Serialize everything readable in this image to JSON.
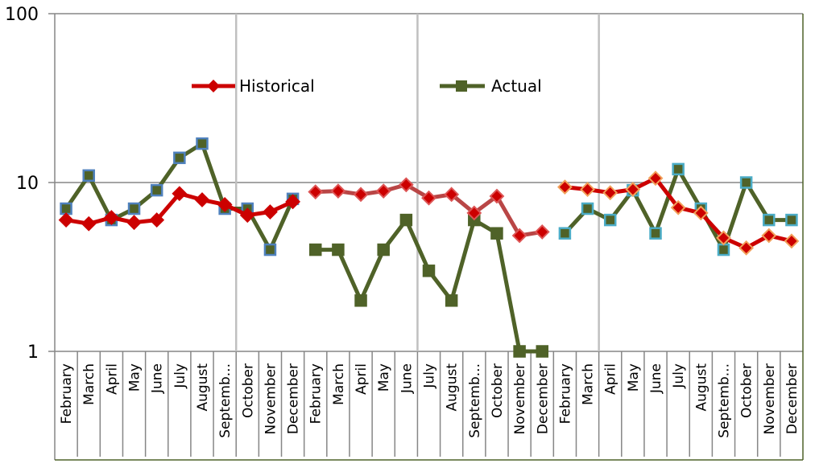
{
  "chart_data": {
    "type": "line",
    "title": "",
    "xlabel": "",
    "ylabel": "",
    "yscale": "log",
    "ylim": [
      1,
      100
    ],
    "yticks": [
      "1",
      "10",
      "100"
    ],
    "grid": true,
    "legend": {
      "placement": "top-center",
      "entries": [
        "Historical",
        "Actual"
      ]
    },
    "categories": [
      "February",
      "March",
      "April",
      "May",
      "June",
      "July",
      "August",
      "Septemb...",
      "October",
      "November",
      "December",
      "February",
      "March",
      "April",
      "May",
      "June",
      "July",
      "August",
      "Septemb...",
      "October",
      "November",
      "December",
      "February",
      "March",
      "April",
      "May",
      "June",
      "July",
      "August",
      "Septemb...",
      "October",
      "November",
      "December"
    ],
    "segment_breaks_after": [
      10,
      21
    ],
    "series": [
      {
        "name": "Historical",
        "color": "#cc0000",
        "values": [
          6.0,
          5.7,
          6.2,
          5.8,
          6.0,
          8.6,
          7.9,
          7.4,
          6.4,
          6.7,
          7.7,
          8.8,
          8.9,
          8.5,
          8.9,
          9.7,
          8.1,
          8.5,
          6.6,
          8.3,
          4.85,
          5.1,
          9.4,
          9.1,
          8.7,
          9.1,
          10.6,
          7.1,
          6.6,
          4.7,
          4.1,
          4.85,
          4.5
        ]
      },
      {
        "name": "Actual",
        "color": "#4f6228",
        "values": [
          7,
          11,
          6,
          7,
          9,
          14,
          17,
          7,
          7,
          4,
          8,
          4,
          4,
          2,
          4,
          6,
          3,
          2,
          6,
          5,
          1,
          1,
          5,
          7,
          6,
          9,
          5,
          12,
          7,
          4,
          10,
          6,
          6
        ]
      }
    ]
  }
}
